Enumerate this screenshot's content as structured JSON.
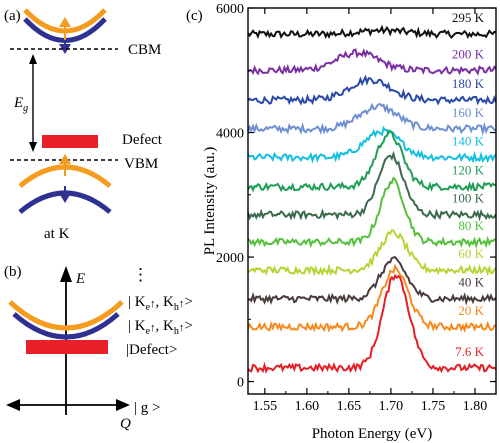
{
  "panels": {
    "a": {
      "label": "(a)",
      "cbm_label": "CBM",
      "eg_label": "E",
      "eg_sub": "g",
      "defect_label": "Defect",
      "vbm_label": "VBM",
      "atk_label": "at K"
    },
    "b": {
      "label": "(b)",
      "e_axis": "E",
      "q_axis": "Q",
      "dots": "⋮",
      "states": [
        {
          "open": "| K",
          "s1": "e",
          "s1arrow": "↑",
          "mid": ", K",
          "s2": "h",
          "s2arrow": "↑",
          "close": ">"
        },
        {
          "open": "| K",
          "s1": "e",
          "s1arrow": "↑",
          "mid": ", K",
          "s2": "h",
          "s2arrow": "↑",
          "close": ">"
        }
      ],
      "defect_state": "|Defect>",
      "ground_state": "| g >"
    },
    "c": {
      "label": "(c)"
    }
  },
  "colors": {
    "orange": "#f39c1e",
    "blue": "#2e3192",
    "defect_red": "#e8202a"
  },
  "chart_data": {
    "type": "line",
    "xlabel": "Photon Energy (eV)",
    "ylabel": "PL Intensity (a.u.)",
    "xlim": [
      1.53,
      1.825
    ],
    "ylim": [
      -200,
      6000
    ],
    "x_ticks": [
      "1.55",
      "1.60",
      "1.65",
      "1.70",
      "1.75",
      "1.80"
    ],
    "y_ticks": [
      "0",
      "2000",
      "4000",
      "6000"
    ],
    "series": [
      {
        "name": "295 K",
        "color": "#111111",
        "baseline": 5580,
        "amp": 60,
        "center": 1.69,
        "width": 0.04
      },
      {
        "name": "200 K",
        "color": "#7b2fa5",
        "baseline": 5000,
        "amp": 280,
        "center": 1.66,
        "width": 0.035
      },
      {
        "name": "180 K",
        "color": "#2a4aa8",
        "baseline": 4520,
        "amp": 330,
        "center": 1.675,
        "width": 0.035
      },
      {
        "name": "160 K",
        "color": "#6e8fd2",
        "baseline": 4060,
        "amp": 360,
        "center": 1.685,
        "width": 0.032
      },
      {
        "name": "140 K",
        "color": "#14c0e0",
        "baseline": 3600,
        "amp": 420,
        "center": 1.69,
        "width": 0.03
      },
      {
        "name": "120 K",
        "color": "#1f9e55",
        "baseline": 3130,
        "amp": 850,
        "center": 1.698,
        "width": 0.022
      },
      {
        "name": "100 K",
        "color": "#3a6b4e",
        "baseline": 2680,
        "amp": 950,
        "center": 1.7,
        "width": 0.021
      },
      {
        "name": "80 K",
        "color": "#55c03c",
        "baseline": 2240,
        "amp": 980,
        "center": 1.702,
        "width": 0.02
      },
      {
        "name": "60 K",
        "color": "#b4d533",
        "baseline": 1790,
        "amp": 600,
        "center": 1.703,
        "width": 0.022
      },
      {
        "name": "40 K",
        "color": "#4a3b3b",
        "baseline": 1330,
        "amp": 620,
        "center": 1.703,
        "width": 0.022
      },
      {
        "name": "20 K",
        "color": "#f58a1f",
        "baseline": 880,
        "amp": 920,
        "center": 1.705,
        "width": 0.022
      },
      {
        "name": "7.6 K",
        "color": "#e41f26",
        "baseline": 220,
        "amp": 1500,
        "center": 1.706,
        "width": 0.022
      }
    ]
  }
}
